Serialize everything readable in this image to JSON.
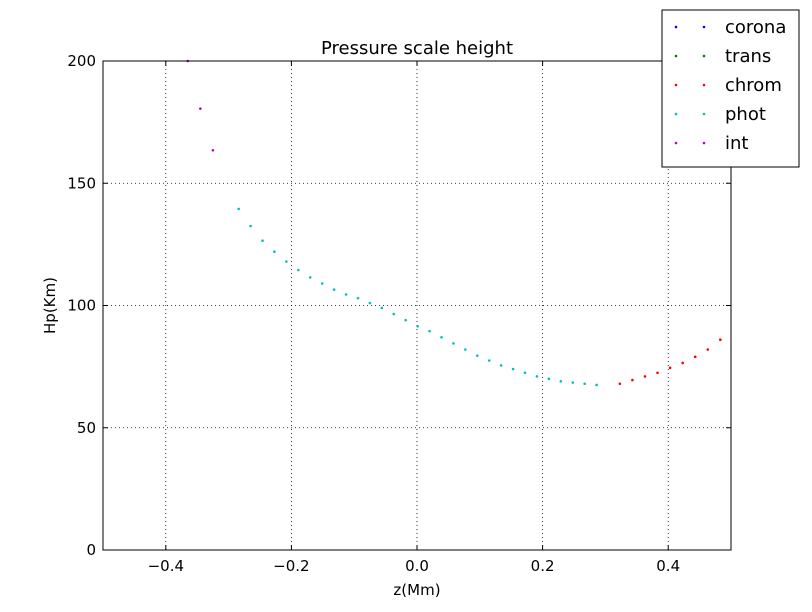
{
  "chart_data": {
    "type": "scatter",
    "title": "Pressure scale height",
    "xlabel": "z(Mm)",
    "ylabel": "Hp(Km)",
    "xlim": [
      -0.5,
      0.5
    ],
    "ylim": [
      0,
      200
    ],
    "xticks": [
      -0.4,
      -0.2,
      0.0,
      0.2,
      0.4
    ],
    "xtick_labels": [
      "−0.4",
      "−0.2",
      "0.0",
      "0.2",
      "0.4"
    ],
    "yticks": [
      0,
      50,
      100,
      150,
      200
    ],
    "ytick_labels": [
      "0",
      "50",
      "100",
      "150",
      "200"
    ],
    "grid": true,
    "legend_position": "top-right",
    "series": [
      {
        "name": "corona",
        "color": "#0000ff",
        "x": [],
        "y": []
      },
      {
        "name": "trans",
        "color": "#008000",
        "x": [],
        "y": []
      },
      {
        "name": "chrom",
        "color": "#ff0000",
        "x": [
          0.323,
          0.343,
          0.363,
          0.383,
          0.403,
          0.423,
          0.443,
          0.463,
          0.483
        ],
        "y": [
          68.0,
          69.5,
          71.0,
          72.5,
          74.5,
          76.5,
          79.0,
          82.0,
          86.0
        ]
      },
      {
        "name": "phot",
        "color": "#00bfbf",
        "x": [
          -0.284,
          -0.265,
          -0.246,
          -0.227,
          -0.208,
          -0.189,
          -0.17,
          -0.151,
          -0.132,
          -0.113,
          -0.094,
          -0.075,
          -0.056,
          -0.037,
          -0.018,
          0.001,
          0.02,
          0.039,
          0.058,
          0.077,
          0.096,
          0.115,
          0.134,
          0.153,
          0.172,
          0.191,
          0.21,
          0.229,
          0.248,
          0.267,
          0.286
        ],
        "y": [
          139.5,
          132.5,
          126.5,
          122.0,
          118.0,
          114.5,
          111.5,
          109.0,
          106.5,
          104.5,
          103.0,
          101.0,
          99.0,
          96.5,
          94.0,
          91.5,
          89.5,
          87.0,
          84.5,
          82.0,
          79.5,
          77.5,
          75.5,
          74.0,
          72.5,
          71.0,
          70.0,
          69.0,
          68.5,
          68.0,
          67.5
        ]
      },
      {
        "name": "int",
        "color": "#bf00bf",
        "x": [
          -0.365,
          -0.345,
          -0.325
        ],
        "y": [
          200.0,
          180.5,
          163.5
        ]
      }
    ]
  }
}
